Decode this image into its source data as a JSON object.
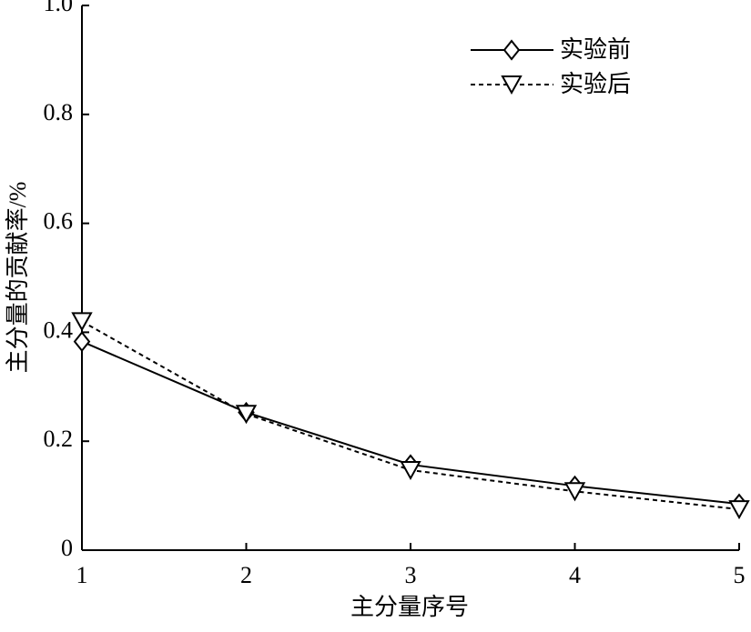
{
  "chart_data": {
    "type": "line",
    "x_label": "主分量序号",
    "y_label": "主分量的贡献率/%",
    "x": [
      1,
      2,
      3,
      4,
      5
    ],
    "series": [
      {
        "name": "实验前",
        "color": "#000000",
        "linestyle": "solid",
        "marker": "diamond",
        "values": [
          0.383,
          0.253,
          0.157,
          0.118,
          0.085
        ]
      },
      {
        "name": "实验后",
        "color": "#000000",
        "linestyle": "dashed",
        "marker": "triangle-down",
        "values": [
          0.42,
          0.25,
          0.147,
          0.108,
          0.075
        ]
      }
    ],
    "xlim": [
      1,
      5
    ],
    "xticks": [
      1,
      2,
      3,
      4,
      5
    ],
    "ylim": [
      0,
      1
    ],
    "yticks": [
      0,
      0.2,
      0.4,
      0.6,
      0.8,
      {
        "value": 1,
        "label": "1.0"
      }
    ],
    "grid": false,
    "legend": "upper right"
  }
}
